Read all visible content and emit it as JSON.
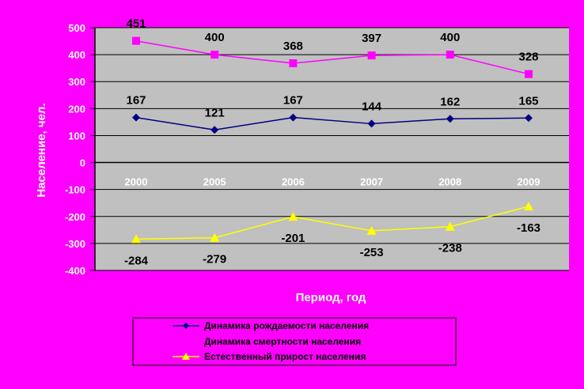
{
  "chart_data": {
    "type": "line",
    "categories": [
      "2000",
      "2005",
      "2006",
      "2007",
      "2008",
      "2009"
    ],
    "xlabel": "Период, год",
    "ylabel": "Население, чел.",
    "ylim": [
      -400,
      500
    ],
    "yticks": [
      "500",
      "400",
      "300",
      "200",
      "100",
      "0",
      "-100",
      "-200",
      "-300",
      "-400"
    ],
    "grid": true,
    "legend_position": "bottom",
    "series": [
      {
        "name": "Динамика рождаемости населения",
        "values": [
          167,
          121,
          167,
          144,
          162,
          165
        ],
        "labels": [
          "167",
          "121",
          "167",
          "144",
          "162",
          "165"
        ],
        "color": "#000080",
        "marker": "diamond"
      },
      {
        "name": "Динамика смертности населения",
        "values": [
          451,
          400,
          368,
          397,
          400,
          328
        ],
        "labels": [
          "451",
          "400",
          "368",
          "397",
          "400",
          "328"
        ],
        "color": "#ff00ff",
        "marker": "square"
      },
      {
        "name": "Естественный прирост населения",
        "values": [
          -284,
          -279,
          -201,
          -253,
          -238,
          -163
        ],
        "labels": [
          "-284",
          "-279",
          "-201",
          "-253",
          "-238",
          "-163"
        ],
        "color": "#ffff00",
        "marker": "triangle"
      }
    ],
    "colors": {
      "background": "#ff00ff",
      "plot_area": "#c0c0c0",
      "gridline": "#000000",
      "tick_text": "#ffffff",
      "legend_bg": "#ff00ff"
    }
  }
}
